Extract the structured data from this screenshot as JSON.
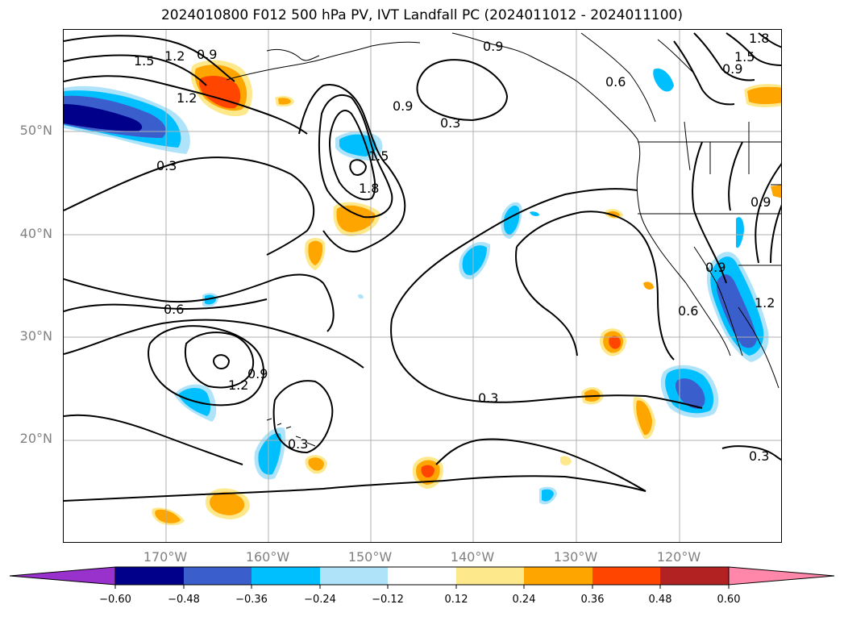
{
  "title": "2024010800 F012 500 hPa PV, IVT Landfall PC (2024011012 - 2024011100)",
  "lat_labels": [
    "50°N",
    "40°N",
    "30°N",
    "20°N"
  ],
  "lon_labels": [
    "170°W",
    "160°W",
    "150°W",
    "140°W",
    "130°W",
    "120°W"
  ],
  "contour_labels": [
    "1.5",
    "1.2",
    "0.9",
    "1.2",
    "0.3",
    "0.9",
    "1.5",
    "1.8",
    "0.9",
    "0.3",
    "0.6",
    "1.8",
    "1.5",
    "0.9",
    "0.6",
    "1.2",
    "0.9",
    "0.3",
    "0.3",
    "0.6",
    "0.9",
    "1.2",
    "0.9",
    "0.3"
  ],
  "colorbar": {
    "ticks": [
      "−0.60",
      "−0.48",
      "−0.36",
      "−0.24",
      "−0.12",
      "0.12",
      "0.24",
      "0.36",
      "0.48",
      "0.60"
    ],
    "colors": [
      "#9932cc",
      "#00008b",
      "#3a5fcd",
      "#00bfff",
      "#aee3fa",
      "#ffffff",
      "#fde98c",
      "#ffa500",
      "#ff4500",
      "#b22222",
      "#ff88aa"
    ]
  }
}
